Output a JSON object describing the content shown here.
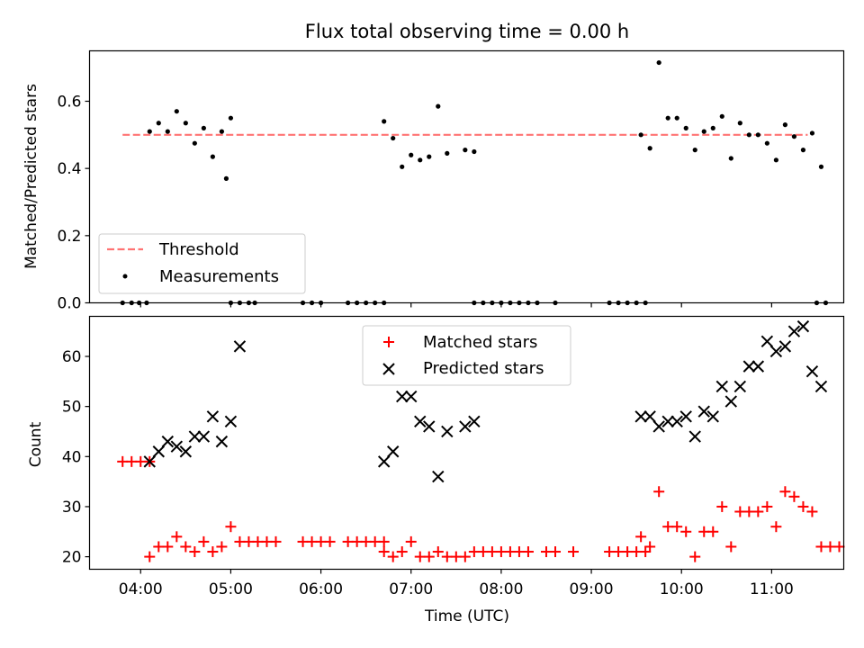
{
  "figure": {
    "title": "Flux total observing time = 0.00 h"
  },
  "colors": {
    "threshold": "#ff7373",
    "measurement": "#000000",
    "matched": "#ff0000",
    "predicted": "#000000"
  },
  "chart_data": [
    {
      "type": "scatter",
      "ylabel": "Matched/Predicted stars",
      "xlim": [
        "03:26",
        "11:48"
      ],
      "ylim": [
        0,
        0.75
      ],
      "yticks": [
        "0.0",
        "0.2",
        "0.4",
        "0.6"
      ],
      "grid": false,
      "legend": {
        "placement": "lower-left",
        "entries": [
          "Threshold",
          "Measurements"
        ]
      },
      "threshold": {
        "name": "Threshold",
        "y": 0.5,
        "x_range": [
          "03:48",
          "11:24"
        ],
        "style": "dashed"
      },
      "series": [
        {
          "name": "Measurements",
          "marker": "dot",
          "points": [
            [
              "03:48",
              0
            ],
            [
              "03:54",
              0
            ],
            [
              "03:59",
              0
            ],
            [
              "04:04",
              0
            ],
            [
              "04:06",
              0.51
            ],
            [
              "04:12",
              0.535
            ],
            [
              "04:18",
              0.51
            ],
            [
              "04:24",
              0.57
            ],
            [
              "04:30",
              0.535
            ],
            [
              "04:36",
              0.475
            ],
            [
              "04:42",
              0.52
            ],
            [
              "04:48",
              0.435
            ],
            [
              "04:54",
              0.51
            ],
            [
              "05:00",
              0.55
            ],
            [
              "04:57",
              0.37
            ],
            [
              "05:00",
              0
            ],
            [
              "05:06",
              0
            ],
            [
              "05:12",
              0
            ],
            [
              "05:16",
              0
            ],
            [
              "05:48",
              0
            ],
            [
              "05:54",
              0
            ],
            [
              "06:00",
              0
            ],
            [
              "06:18",
              0
            ],
            [
              "06:24",
              0
            ],
            [
              "06:30",
              0
            ],
            [
              "06:36",
              0
            ],
            [
              "06:42",
              0
            ],
            [
              "06:42",
              0.54
            ],
            [
              "06:48",
              0.49
            ],
            [
              "06:54",
              0.405
            ],
            [
              "07:00",
              0.44
            ],
            [
              "07:06",
              0.425
            ],
            [
              "07:12",
              0.435
            ],
            [
              "07:18",
              0.585
            ],
            [
              "07:24",
              0.445
            ],
            [
              "07:36",
              0.455
            ],
            [
              "07:42",
              0.45
            ],
            [
              "07:42",
              0
            ],
            [
              "07:48",
              0
            ],
            [
              "07:54",
              0
            ],
            [
              "08:00",
              0
            ],
            [
              "08:06",
              0
            ],
            [
              "08:12",
              0
            ],
            [
              "08:18",
              0
            ],
            [
              "08:24",
              0
            ],
            [
              "08:36",
              0
            ],
            [
              "09:12",
              0
            ],
            [
              "09:18",
              0
            ],
            [
              "09:24",
              0
            ],
            [
              "09:30",
              0
            ],
            [
              "09:36",
              0
            ],
            [
              "09:33",
              0.5
            ],
            [
              "09:39",
              0.46
            ],
            [
              "09:45",
              0.715
            ],
            [
              "09:51",
              0.55
            ],
            [
              "09:57",
              0.55
            ],
            [
              "10:03",
              0.52
            ],
            [
              "10:09",
              0.455
            ],
            [
              "10:15",
              0.51
            ],
            [
              "10:21",
              0.52
            ],
            [
              "10:27",
              0.555
            ],
            [
              "10:33",
              0.43
            ],
            [
              "10:39",
              0.535
            ],
            [
              "10:45",
              0.5
            ],
            [
              "10:51",
              0.5
            ],
            [
              "10:57",
              0.475
            ],
            [
              "11:03",
              0.425
            ],
            [
              "11:09",
              0.53
            ],
            [
              "11:15",
              0.495
            ],
            [
              "11:21",
              0.455
            ],
            [
              "11:27",
              0.505
            ],
            [
              "11:33",
              0.405
            ],
            [
              "11:30",
              0
            ],
            [
              "11:36",
              0
            ]
          ]
        }
      ]
    },
    {
      "type": "scatter",
      "xlabel": "Time (UTC)",
      "ylabel": "Count",
      "xlim": [
        "03:26",
        "11:48"
      ],
      "ylim": [
        17.5,
        68
      ],
      "xticks": [
        "04:00",
        "05:00",
        "06:00",
        "07:00",
        "08:00",
        "09:00",
        "10:00",
        "11:00"
      ],
      "yticks": [
        "20",
        "30",
        "40",
        "50",
        "60"
      ],
      "grid": false,
      "legend": {
        "placement": "top-center",
        "entries": [
          "Matched stars",
          "Predicted stars"
        ]
      },
      "series": [
        {
          "name": "Matched stars",
          "marker": "plus",
          "points": [
            [
              "03:48",
              39
            ],
            [
              "03:54",
              39
            ],
            [
              "04:00",
              39
            ],
            [
              "04:06",
              39
            ],
            [
              "04:06",
              20
            ],
            [
              "04:12",
              22
            ],
            [
              "04:18",
              22
            ],
            [
              "04:24",
              24
            ],
            [
              "04:30",
              22
            ],
            [
              "04:36",
              21
            ],
            [
              "04:42",
              23
            ],
            [
              "04:48",
              21
            ],
            [
              "04:54",
              22
            ],
            [
              "05:00",
              26
            ],
            [
              "05:06",
              23
            ],
            [
              "05:12",
              23
            ],
            [
              "05:18",
              23
            ],
            [
              "05:24",
              23
            ],
            [
              "05:30",
              23
            ],
            [
              "05:48",
              23
            ],
            [
              "05:54",
              23
            ],
            [
              "06:00",
              23
            ],
            [
              "06:06",
              23
            ],
            [
              "06:18",
              23
            ],
            [
              "06:24",
              23
            ],
            [
              "06:30",
              23
            ],
            [
              "06:36",
              23
            ],
            [
              "06:42",
              23
            ],
            [
              "06:42",
              21
            ],
            [
              "06:48",
              20
            ],
            [
              "06:54",
              21
            ],
            [
              "07:00",
              23
            ],
            [
              "07:06",
              20
            ],
            [
              "07:12",
              20
            ],
            [
              "07:18",
              21
            ],
            [
              "07:24",
              20
            ],
            [
              "07:30",
              20
            ],
            [
              "07:36",
              20
            ],
            [
              "07:42",
              21
            ],
            [
              "07:48",
              21
            ],
            [
              "07:54",
              21
            ],
            [
              "08:00",
              21
            ],
            [
              "08:06",
              21
            ],
            [
              "08:12",
              21
            ],
            [
              "08:18",
              21
            ],
            [
              "08:30",
              21
            ],
            [
              "08:36",
              21
            ],
            [
              "08:48",
              21
            ],
            [
              "09:12",
              21
            ],
            [
              "09:18",
              21
            ],
            [
              "09:24",
              21
            ],
            [
              "09:30",
              21
            ],
            [
              "09:36",
              21
            ],
            [
              "09:33",
              24
            ],
            [
              "09:39",
              22
            ],
            [
              "09:45",
              33
            ],
            [
              "09:51",
              26
            ],
            [
              "09:57",
              26
            ],
            [
              "10:03",
              25
            ],
            [
              "10:09",
              20
            ],
            [
              "10:15",
              25
            ],
            [
              "10:21",
              25
            ],
            [
              "10:27",
              30
            ],
            [
              "10:33",
              22
            ],
            [
              "10:39",
              29
            ],
            [
              "10:45",
              29
            ],
            [
              "10:51",
              29
            ],
            [
              "10:57",
              30
            ],
            [
              "11:03",
              26
            ],
            [
              "11:09",
              33
            ],
            [
              "11:15",
              32
            ],
            [
              "11:21",
              30
            ],
            [
              "11:27",
              29
            ],
            [
              "11:33",
              22
            ],
            [
              "11:39",
              22
            ],
            [
              "11:45",
              22
            ]
          ]
        },
        {
          "name": "Predicted stars",
          "marker": "x",
          "points": [
            [
              "04:06",
              39
            ],
            [
              "04:12",
              41
            ],
            [
              "04:18",
              43
            ],
            [
              "04:24",
              42
            ],
            [
              "04:30",
              41
            ],
            [
              "04:36",
              44
            ],
            [
              "04:42",
              44
            ],
            [
              "04:48",
              48
            ],
            [
              "04:54",
              43
            ],
            [
              "05:00",
              47
            ],
            [
              "05:06",
              62
            ],
            [
              "06:42",
              39
            ],
            [
              "06:48",
              41
            ],
            [
              "06:54",
              52
            ],
            [
              "07:00",
              52
            ],
            [
              "07:06",
              47
            ],
            [
              "07:12",
              46
            ],
            [
              "07:18",
              36
            ],
            [
              "07:24",
              45
            ],
            [
              "07:36",
              46
            ],
            [
              "07:42",
              47
            ],
            [
              "09:33",
              48
            ],
            [
              "09:39",
              48
            ],
            [
              "09:45",
              46
            ],
            [
              "09:51",
              47
            ],
            [
              "09:57",
              47
            ],
            [
              "10:03",
              48
            ],
            [
              "10:09",
              44
            ],
            [
              "10:15",
              49
            ],
            [
              "10:21",
              48
            ],
            [
              "10:27",
              54
            ],
            [
              "10:33",
              51
            ],
            [
              "10:39",
              54
            ],
            [
              "10:45",
              58
            ],
            [
              "10:51",
              58
            ],
            [
              "10:57",
              63
            ],
            [
              "11:03",
              61
            ],
            [
              "11:09",
              62
            ],
            [
              "11:15",
              65
            ],
            [
              "11:21",
              66
            ],
            [
              "11:27",
              57
            ],
            [
              "11:33",
              54
            ]
          ]
        }
      ]
    }
  ]
}
